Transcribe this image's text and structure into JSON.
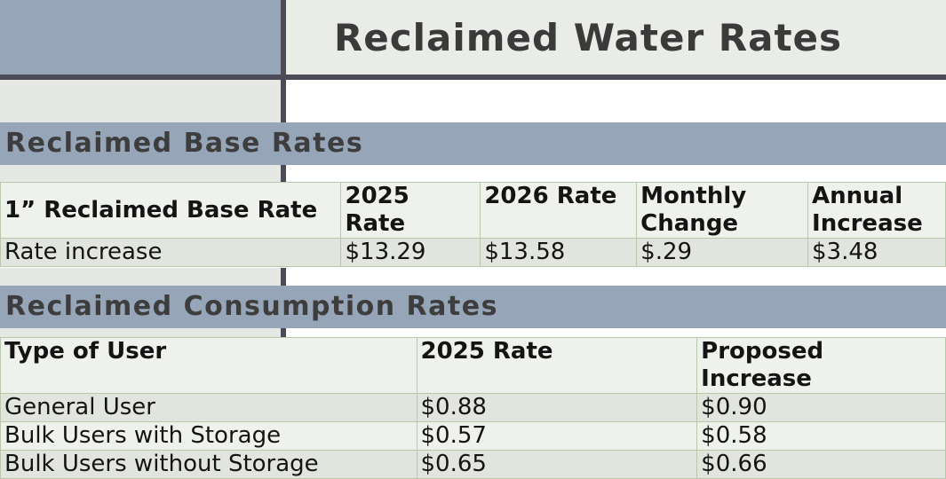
{
  "page_title": "Reclaimed Water Rates",
  "base_rates": {
    "section_title": "Reclaimed Base Rates",
    "headers": [
      "1” Reclaimed Base Rate",
      "2025 Rate",
      "2026 Rate",
      "Monthly Change",
      "Annual Increase"
    ],
    "row": [
      "Rate increase",
      "$13.29",
      "$13.58",
      "$.29",
      "$3.48"
    ]
  },
  "consumption_rates": {
    "section_title": "Reclaimed Consumption Rates",
    "headers": [
      "Type of User",
      "2025 Rate",
      "Proposed Increase"
    ],
    "rows": [
      [
        "General User",
        "$0.88",
        "$0.90"
      ],
      [
        "Bulk Users with Storage",
        "$0.57",
        "$0.58"
      ],
      [
        "Bulk Users without Storage",
        "$0.65",
        "$0.66"
      ]
    ]
  },
  "colors": {
    "band": "#96a5b7",
    "divider": "#4e4b58",
    "cell_light": "#eff2ec",
    "cell_dark": "#e1e5dd",
    "grid": "#b9c8ad"
  }
}
